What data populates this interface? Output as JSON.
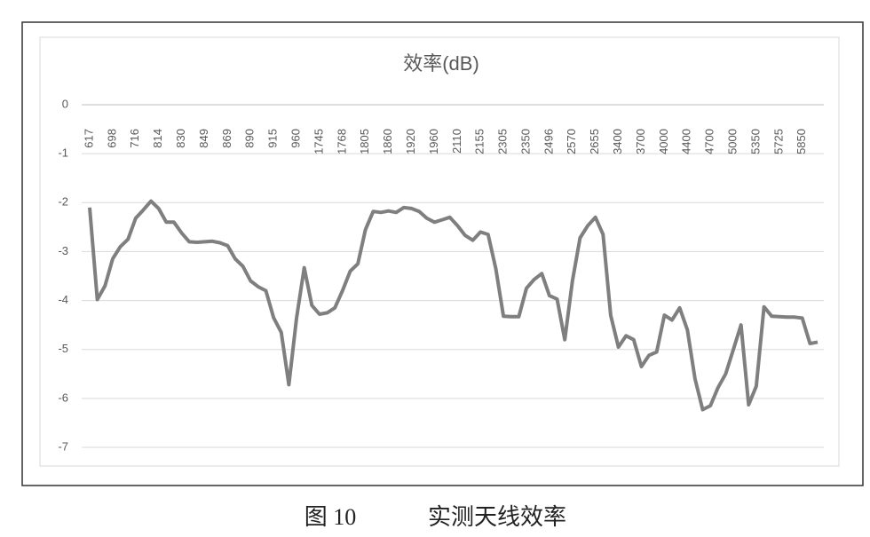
{
  "chart_data": {
    "type": "line",
    "title": "效率(dB)",
    "figure_label": "图 10",
    "caption": "实测天线效率",
    "categories": [
      "617",
      null,
      null,
      "698",
      null,
      null,
      "716",
      null,
      null,
      "814",
      null,
      null,
      "830",
      null,
      null,
      "849",
      null,
      null,
      "869",
      null,
      null,
      "890",
      null,
      null,
      "915",
      null,
      null,
      "960",
      null,
      null,
      "1745",
      null,
      null,
      "1768",
      null,
      null,
      "1805",
      null,
      null,
      "1860",
      null,
      null,
      "1920",
      null,
      null,
      "1960",
      null,
      null,
      "2110",
      null,
      null,
      "2155",
      null,
      null,
      "2305",
      null,
      null,
      "2350",
      null,
      null,
      "2496",
      null,
      null,
      "2570",
      null,
      null,
      "2655",
      null,
      null,
      "3400",
      null,
      null,
      "3700",
      null,
      null,
      "4000",
      null,
      null,
      "4400",
      null,
      null,
      "4700",
      null,
      null,
      "5000",
      null,
      null,
      "5350",
      null,
      null,
      "5725",
      null,
      null,
      "5850",
      null,
      null
    ],
    "values": [
      -2.1,
      -3.98,
      -3.7,
      -3.15,
      -2.9,
      -2.75,
      -2.32,
      -2.15,
      -1.97,
      -2.12,
      -2.4,
      -2.4,
      -2.62,
      -2.8,
      -2.81,
      -2.8,
      -2.79,
      -2.82,
      -2.88,
      -3.15,
      -3.3,
      -3.6,
      -3.72,
      -3.8,
      -4.35,
      -4.65,
      -5.72,
      -4.35,
      -3.33,
      -4.1,
      -4.28,
      -4.25,
      -4.15,
      -3.8,
      -3.4,
      -3.25,
      -2.55,
      -2.18,
      -2.2,
      -2.17,
      -2.2,
      -2.1,
      -2.12,
      -2.18,
      -2.32,
      -2.4,
      -2.35,
      -2.3,
      -2.47,
      -2.67,
      -2.77,
      -2.6,
      -2.65,
      -3.35,
      -4.32,
      -4.33,
      -4.33,
      -3.75,
      -3.57,
      -3.45,
      -3.9,
      -3.97,
      -4.8,
      -3.6,
      -2.72,
      -2.47,
      -2.3,
      -2.65,
      -4.3,
      -4.95,
      -4.72,
      -4.8,
      -5.35,
      -5.12,
      -5.05,
      -4.3,
      -4.4,
      -4.15,
      -4.6,
      -5.6,
      -6.23,
      -6.15,
      -5.78,
      -5.5,
      -5.0,
      -4.5,
      -6.13,
      -5.75,
      -4.13,
      -4.32,
      -4.33,
      -4.34,
      -4.34,
      -4.36,
      -4.88,
      -4.85
    ],
    "color": "#7f7f7f",
    "ylim": [
      -7,
      0
    ],
    "yticks": [
      0,
      -1,
      -2,
      -3,
      -4,
      -5,
      -6,
      -7
    ],
    "grid": true
  }
}
